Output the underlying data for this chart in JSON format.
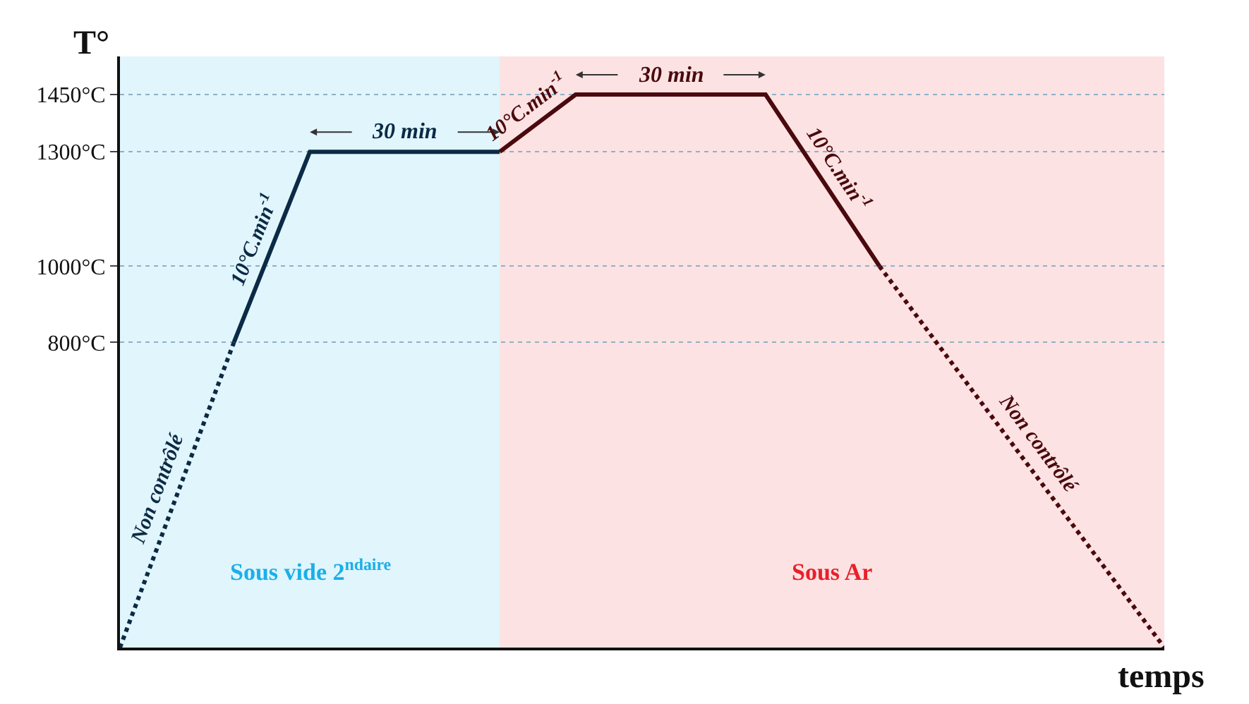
{
  "chart_data": {
    "type": "line",
    "xlabel": "temps",
    "ylabel": "T°",
    "categories": [
      null,
      null,
      null,
      null,
      null,
      null,
      null,
      null,
      null,
      null,
      null,
      null,
      null,
      null,
      null,
      null,
      null,
      null,
      null,
      null,
      null,
      null,
      null,
      null,
      null,
      null,
      null,
      null,
      null,
      null,
      null,
      null,
      null,
      null,
      null,
      null,
      null,
      null,
      null,
      null,
      null,
      null,
      null,
      null,
      null,
      null,
      null,
      null,
      null,
      null,
      null,
      null,
      null,
      null,
      null,
      null
    ],
    "ylim": [
      0,
      1550
    ],
    "yticks": [
      {
        "value": 800,
        "label": "800°C"
      },
      {
        "value": 1000,
        "label": "1000°C"
      },
      {
        "value": 1300,
        "label": "1300°C"
      },
      {
        "value": 1450,
        "label": "1450°C"
      }
    ],
    "grid": "y",
    "series": [
      {
        "color": "#0b2a45",
        "line_style": "dotted",
        "values": [
          0,
          null,
          null,
          null,
          null,
          null,
          800,
          null,
          null,
          null,
          null,
          null,
          null,
          null,
          null,
          null,
          null,
          null,
          null,
          null,
          null,
          null,
          null,
          null,
          null,
          null,
          null,
          null,
          null,
          null,
          null,
          null,
          null,
          null,
          null,
          null,
          null,
          null,
          null,
          null,
          null,
          null,
          null,
          null,
          null,
          null,
          null,
          null,
          null,
          null,
          null,
          null,
          null,
          null,
          null,
          null
        ]
      },
      {
        "color": "#0b2a45",
        "line_style": "solid",
        "values": [
          null,
          null,
          null,
          null,
          null,
          null,
          800,
          null,
          null,
          null,
          1300,
          null,
          null,
          null,
          null,
          null,
          null,
          null,
          null,
          null,
          1300,
          null,
          null,
          null,
          null,
          null,
          null,
          null,
          null,
          null,
          null,
          null,
          null,
          null,
          null,
          null,
          null,
          null,
          null,
          null,
          null,
          null,
          null,
          null,
          null,
          null,
          null,
          null,
          null,
          null,
          null,
          null,
          null,
          null,
          null,
          null
        ]
      },
      {
        "color": "#4a0a0d",
        "line_style": "solid",
        "values": [
          null,
          null,
          null,
          null,
          null,
          null,
          null,
          null,
          null,
          null,
          null,
          null,
          null,
          null,
          null,
          null,
          null,
          null,
          null,
          null,
          1300,
          null,
          null,
          null,
          1450,
          null,
          null,
          null,
          null,
          null,
          null,
          null,
          null,
          null,
          1450,
          null,
          null,
          null,
          null,
          null,
          1000,
          null,
          null,
          null,
          null,
          null,
          null,
          null,
          null,
          null,
          null,
          null,
          null,
          null,
          null,
          null
        ]
      },
      {
        "color": "#4a0a0d",
        "line_style": "dotted",
        "values": [
          null,
          null,
          null,
          null,
          null,
          null,
          null,
          null,
          null,
          null,
          null,
          null,
          null,
          null,
          null,
          null,
          null,
          null,
          null,
          null,
          null,
          null,
          null,
          null,
          null,
          null,
          null,
          null,
          null,
          null,
          null,
          null,
          null,
          null,
          null,
          null,
          null,
          null,
          null,
          null,
          1000,
          null,
          null,
          null,
          null,
          null,
          null,
          null,
          null,
          null,
          null,
          null,
          null,
          null,
          null,
          0
        ]
      }
    ],
    "annotations": [
      {
        "text": "30 min",
        "y": 1300
      },
      {
        "text": "30 min",
        "y": 1450
      },
      "Non contrôlé",
      "10°C.min$^{-1}$",
      "10°C.min$^{-1}$",
      "10°C.min$^{-1}$",
      "Non contrôlé",
      "Sous vide 2$^{ndaire}$",
      "Sous Ar"
    ]
  }
}
